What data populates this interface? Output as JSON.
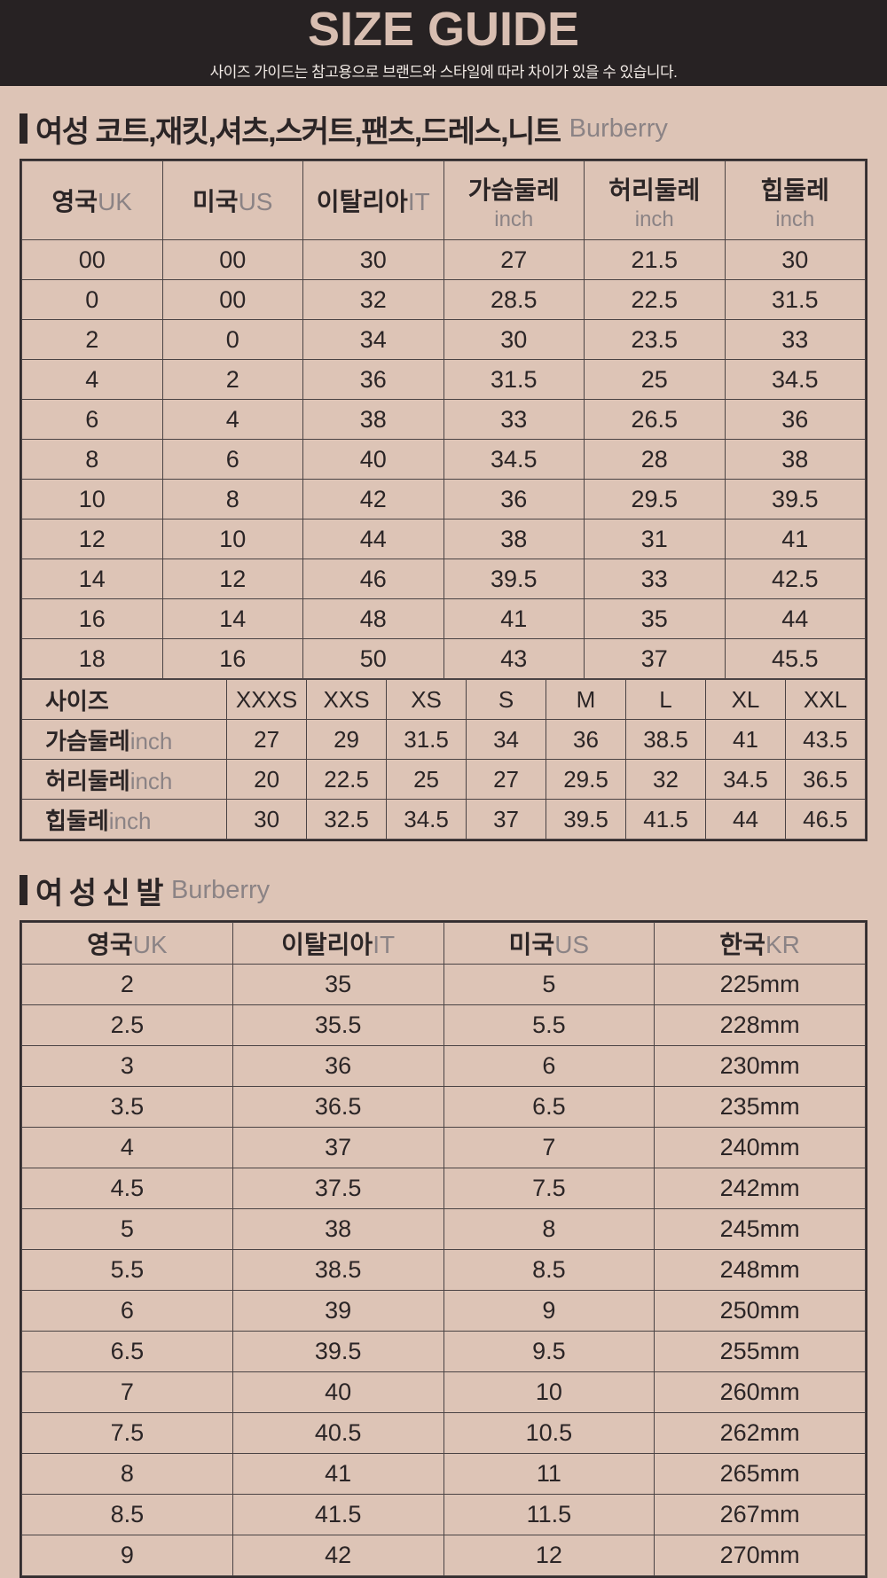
{
  "banner": {
    "title": "SIZE GUIDE",
    "subtitle": "사이즈 가이드는 참고용으로 브랜드와 스타일에 따라 차이가 있을 수 있습니다."
  },
  "colors": {
    "background": "#ddc4b6",
    "banner_bg": "#272223",
    "banner_title": "#d8beb1",
    "text": "#2b2526",
    "muted": "#8b8385",
    "border": "#4a4344"
  },
  "sections": {
    "clothing": {
      "title": "여성 코트,재킷,셔츠,스커트,팬츠,드레스,니트",
      "brand": "Burberry"
    },
    "shoes": {
      "title": "여 성 신 발",
      "brand": "Burberry"
    }
  },
  "clothing_table": {
    "columns": [
      {
        "label": "영국",
        "suffix": "UK",
        "stacked": false
      },
      {
        "label": "미국",
        "suffix": "US",
        "stacked": false
      },
      {
        "label": "이탈리아",
        "suffix": "IT",
        "stacked": false
      },
      {
        "label": "가슴둘레",
        "suffix": "inch",
        "stacked": true
      },
      {
        "label": "허리둘레",
        "suffix": "inch",
        "stacked": true
      },
      {
        "label": "힙둘레",
        "suffix": "inch",
        "stacked": true
      }
    ],
    "rows": [
      [
        "00",
        "00",
        "30",
        "27",
        "21.5",
        "30"
      ],
      [
        "0",
        "00",
        "32",
        "28.5",
        "22.5",
        "31.5"
      ],
      [
        "2",
        "0",
        "34",
        "30",
        "23.5",
        "33"
      ],
      [
        "4",
        "2",
        "36",
        "31.5",
        "25",
        "34.5"
      ],
      [
        "6",
        "4",
        "38",
        "33",
        "26.5",
        "36"
      ],
      [
        "8",
        "6",
        "40",
        "34.5",
        "28",
        "38"
      ],
      [
        "10",
        "8",
        "42",
        "36",
        "29.5",
        "39.5"
      ],
      [
        "12",
        "10",
        "44",
        "38",
        "31",
        "41"
      ],
      [
        "14",
        "12",
        "46",
        "39.5",
        "33",
        "42.5"
      ],
      [
        "16",
        "14",
        "48",
        "41",
        "35",
        "44"
      ],
      [
        "18",
        "16",
        "50",
        "43",
        "37",
        "45.5"
      ]
    ]
  },
  "size_table": {
    "header_label": "사이즈",
    "sizes": [
      "XXXS",
      "XXS",
      "XS",
      "S",
      "M",
      "L",
      "XL",
      "XXL"
    ],
    "rows": [
      {
        "label": "가슴둘레",
        "suffix": "inch",
        "values": [
          "27",
          "29",
          "31.5",
          "34",
          "36",
          "38.5",
          "41",
          "43.5"
        ]
      },
      {
        "label": "허리둘레",
        "suffix": "inch",
        "values": [
          "20",
          "22.5",
          "25",
          "27",
          "29.5",
          "32",
          "34.5",
          "36.5"
        ]
      },
      {
        "label": "힙둘레",
        "suffix": "inch",
        "values": [
          "30",
          "32.5",
          "34.5",
          "37",
          "39.5",
          "41.5",
          "44",
          "46.5"
        ]
      }
    ]
  },
  "shoes_table": {
    "columns": [
      {
        "label": "영국",
        "suffix": "UK"
      },
      {
        "label": "이탈리아",
        "suffix": "IT"
      },
      {
        "label": "미국",
        "suffix": "US"
      },
      {
        "label": "한국",
        "suffix": "KR"
      }
    ],
    "rows": [
      [
        "2",
        "35",
        "5",
        "225mm"
      ],
      [
        "2.5",
        "35.5",
        "5.5",
        "228mm"
      ],
      [
        "3",
        "36",
        "6",
        "230mm"
      ],
      [
        "3.5",
        "36.5",
        "6.5",
        "235mm"
      ],
      [
        "4",
        "37",
        "7",
        "240mm"
      ],
      [
        "4.5",
        "37.5",
        "7.5",
        "242mm"
      ],
      [
        "5",
        "38",
        "8",
        "245mm"
      ],
      [
        "5.5",
        "38.5",
        "8.5",
        "248mm"
      ],
      [
        "6",
        "39",
        "9",
        "250mm"
      ],
      [
        "6.5",
        "39.5",
        "9.5",
        "255mm"
      ],
      [
        "7",
        "40",
        "10",
        "260mm"
      ],
      [
        "7.5",
        "40.5",
        "10.5",
        "262mm"
      ],
      [
        "8",
        "41",
        "11",
        "265mm"
      ],
      [
        "8.5",
        "41.5",
        "11.5",
        "267mm"
      ],
      [
        "9",
        "42",
        "12",
        "270mm"
      ]
    ]
  }
}
